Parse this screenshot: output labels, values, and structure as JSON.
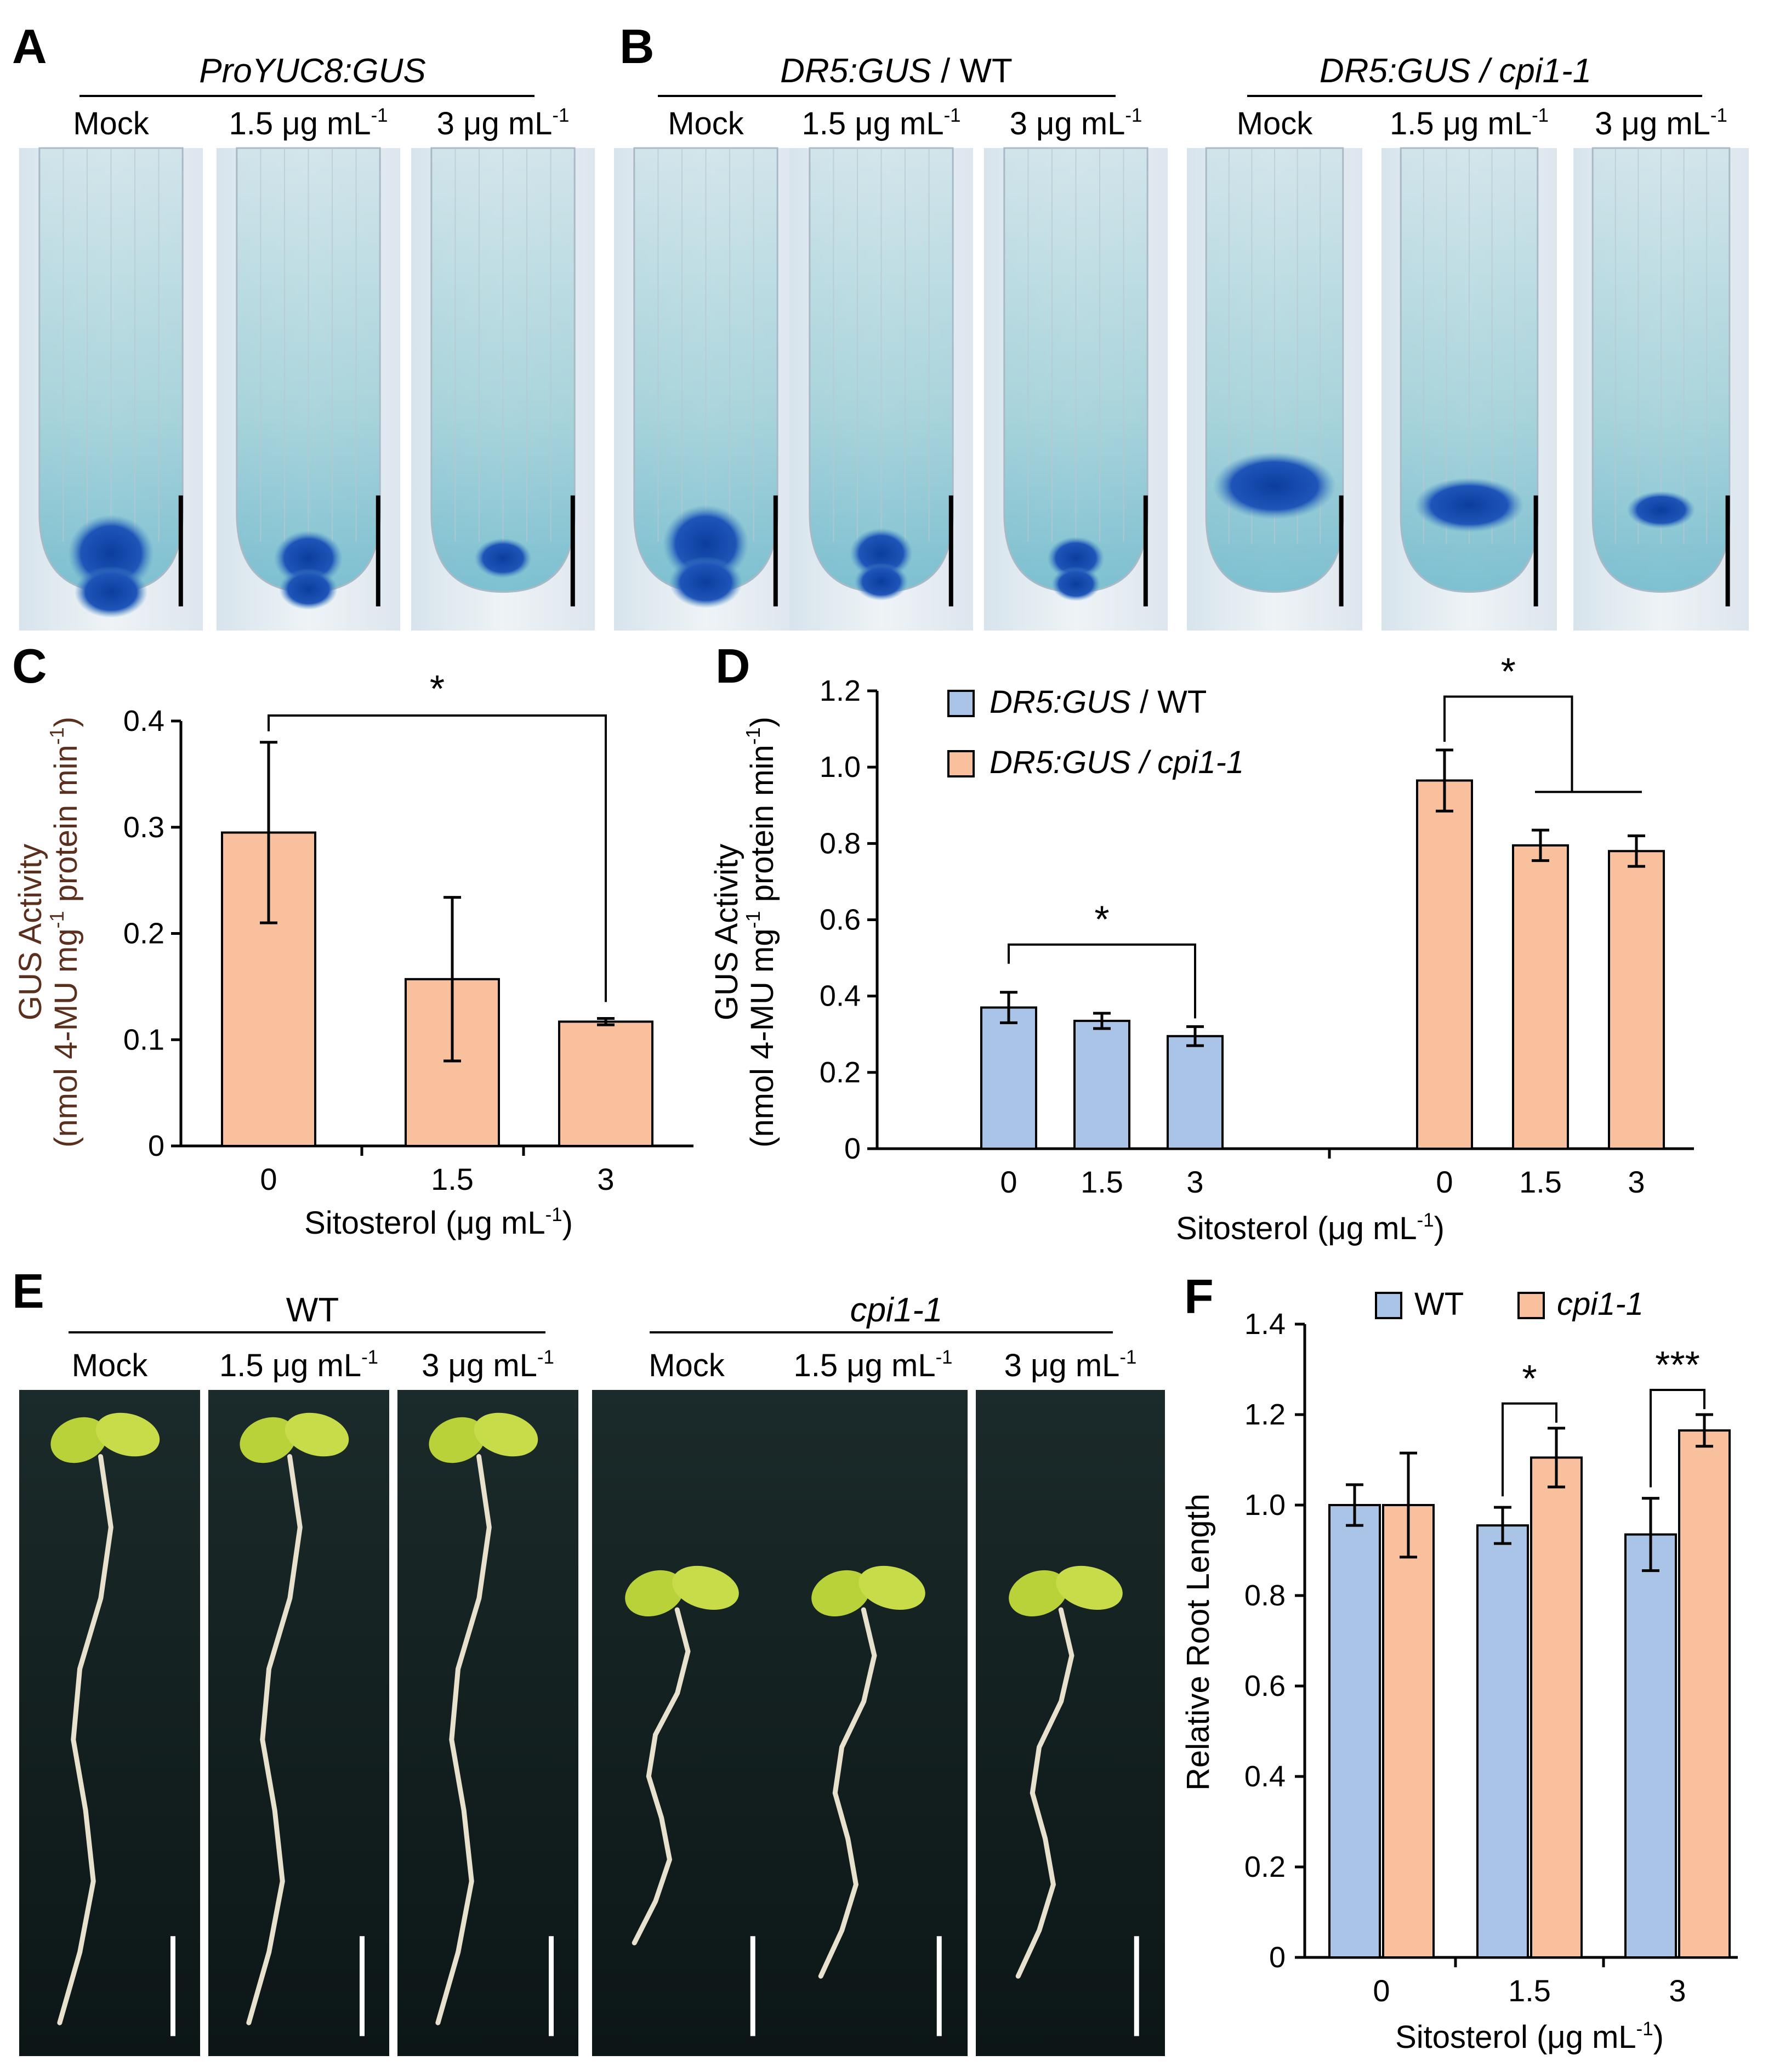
{
  "colors": {
    "wt_bar": "#a9c4e6",
    "cpi_bar": "#f9c09e",
    "bar_edge": "#000000",
    "axis_label_c": "#5a2f1e",
    "micro_bg": "#e9eef2",
    "micro_stain": "#1f55b8",
    "plant_bg": "#0f1c1c",
    "seedling_root": "#e7e1cd",
    "cotyledon": "#b9d23a"
  },
  "panels": {
    "A": {
      "letter": "A",
      "group_title": "ProYUC8:GUS",
      "treatments": [
        "Mock",
        "1.5 μg mL",
        "3 μg mL"
      ],
      "superscript": "-1"
    },
    "B": {
      "letter": "B",
      "groups": [
        {
          "title_italic": "DR5:GUS",
          "title_plain": " / WT",
          "treatments": [
            "Mock",
            "1.5 μg mL",
            "3 μg mL"
          ]
        },
        {
          "title_italic": "DR5:GUS / cpi1-1",
          "treatments": [
            "Mock",
            "1.5 μg mL",
            "3 μg mL"
          ]
        }
      ],
      "superscript": "-1"
    },
    "C": {
      "letter": "C"
    },
    "D": {
      "letter": "D"
    },
    "E": {
      "letter": "E",
      "groups": [
        {
          "title": "WT",
          "italic": false,
          "treatments": [
            "Mock",
            "1.5 μg mL",
            "3 μg mL"
          ]
        },
        {
          "title": "cpi1-1",
          "italic": true,
          "treatments": [
            "Mock",
            "1.5 μg mL",
            "3 μg mL"
          ]
        }
      ],
      "superscript": "-1"
    },
    "F": {
      "letter": "F"
    }
  },
  "chart_data": [
    {
      "panel": "C",
      "type": "bar",
      "categories": [
        "0",
        "1.5",
        "3"
      ],
      "series": [
        {
          "values": [
            0.295,
            0.157,
            0.117
          ],
          "errors": [
            0.085,
            0.077,
            0.003
          ]
        }
      ],
      "ylabel_line1": "GUS Activity",
      "ylabel_line2": "(nmol 4-MU mg",
      "ylabel_line2_sup": "-1",
      "ylabel_line2_mid": " protein min",
      "ylabel_line2_sup2": "-1",
      "ylabel_line2_end": ")",
      "xlabel": "Sitosterol (μg mL",
      "xlabel_sup": "-1",
      "xlabel_end": ")",
      "ylim": [
        0,
        0.4
      ],
      "yticks": [
        "0",
        "0.1",
        "0.2",
        "0.3",
        "0.4"
      ],
      "annotations": [
        {
          "text": "*",
          "from": 0,
          "to": 2
        }
      ]
    },
    {
      "panel": "D",
      "type": "bar",
      "groups": [
        {
          "categories": [
            "0",
            "1.5",
            "3"
          ]
        },
        {
          "categories": [
            "0",
            "1.5",
            "3"
          ]
        }
      ],
      "series": [
        {
          "name_italic": "DR5:GUS",
          "name_plain": " / WT",
          "values": [
            0.37,
            0.335,
            0.295
          ],
          "errors": [
            0.04,
            0.02,
            0.025
          ]
        },
        {
          "name_italic": "DR5:GUS / cpi1-1",
          "name_plain": "",
          "values": [
            0.965,
            0.795,
            0.78
          ],
          "errors": [
            0.08,
            0.04,
            0.04
          ]
        }
      ],
      "ylabel_line1": "GUS Activity",
      "ylabel_line2": "(nmol 4-MU mg",
      "ylabel_line2_sup": "-1",
      "ylabel_line2_mid": " protein min",
      "ylabel_line2_sup2": "-1",
      "ylabel_line2_end": ")",
      "xlabel": "Sitosterol (μg mL",
      "xlabel_sup": "-1",
      "xlabel_end": ")",
      "ylim": [
        0,
        1.2
      ],
      "yticks": [
        "0",
        "0.2",
        "0.4",
        "0.6",
        "0.8",
        "1.0",
        "1.2"
      ],
      "legend_position": "top-left",
      "annotations": [
        {
          "text": "*",
          "series": 0
        },
        {
          "text": "*",
          "series": 1
        }
      ]
    },
    {
      "panel": "F",
      "type": "bar",
      "categories": [
        "0",
        "1.5",
        "3"
      ],
      "series": [
        {
          "name": "WT",
          "italic": false,
          "values": [
            1.0,
            0.955,
            0.935
          ],
          "errors": [
            0.045,
            0.04,
            0.08
          ]
        },
        {
          "name": "cpi1-1",
          "italic": true,
          "values": [
            1.0,
            1.105,
            1.165
          ],
          "errors": [
            0.115,
            0.065,
            0.035
          ]
        }
      ],
      "ylabel": "Relative Root Length",
      "xlabel": "Sitosterol (μg mL",
      "xlabel_sup": "-1",
      "xlabel_end": ")",
      "ylim": [
        0,
        1.4
      ],
      "yticks": [
        "0",
        "0.2",
        "0.4",
        "0.6",
        "0.8",
        "1.0",
        "1.2",
        "1.4"
      ],
      "legend_position": "top",
      "annotations": [
        {
          "text": "*",
          "category": 1
        },
        {
          "text": "***",
          "category": 2
        }
      ]
    }
  ]
}
